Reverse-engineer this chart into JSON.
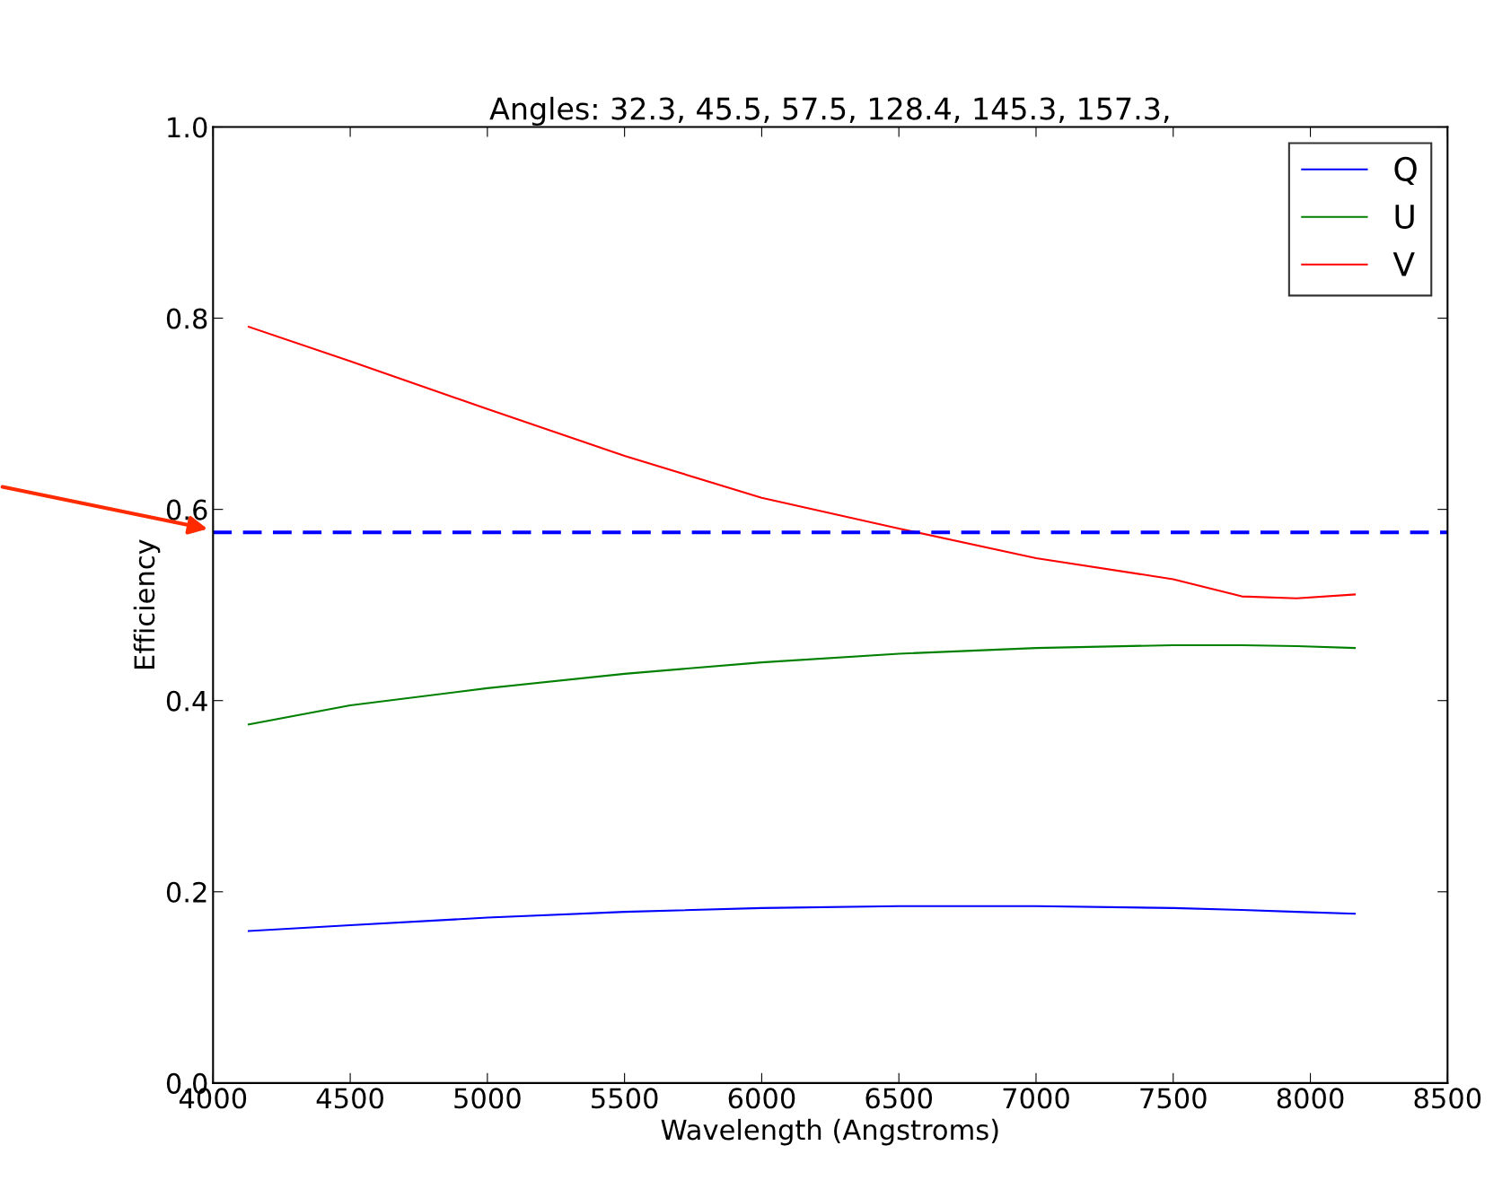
{
  "chart_data": {
    "type": "line",
    "title": "Angles: 32.3, 45.5, 57.5, 128.4, 145.3, 157.3,",
    "xlabel": "Wavelength (Angstroms)",
    "ylabel": "Efficiency",
    "x": [
      4130,
      4500,
      5000,
      5500,
      6000,
      6500,
      7000,
      7500,
      7750,
      7950,
      8162
    ],
    "series": [
      {
        "name": "Q",
        "color": "#0000ff",
        "values": [
          0.159,
          0.165,
          0.173,
          0.179,
          0.183,
          0.185,
          0.185,
          0.183,
          0.181,
          0.179,
          0.177
        ]
      },
      {
        "name": "U",
        "color": "#008000",
        "values": [
          0.375,
          0.395,
          0.413,
          0.428,
          0.44,
          0.449,
          0.455,
          0.458,
          0.458,
          0.457,
          0.455
        ]
      },
      {
        "name": "V",
        "color": "#ff0000",
        "values": [
          0.791,
          0.755,
          0.705,
          0.656,
          0.612,
          0.58,
          0.549,
          0.527,
          0.509,
          0.507,
          0.511
        ]
      }
    ],
    "xlim": [
      4000,
      8500
    ],
    "xticks": [
      4000,
      4500,
      5000,
      5500,
      6000,
      6500,
      7000,
      7500,
      8000,
      8500
    ],
    "ylim": [
      0,
      1
    ],
    "yticks": [
      {
        "value": 0,
        "label": "0.0"
      },
      {
        "value": 0.2,
        "label": "0.2"
      },
      {
        "value": 0.4,
        "label": "0.4"
      },
      {
        "value": 0.6,
        "label": "0.6"
      },
      {
        "value": 0.8,
        "label": "0.8"
      },
      {
        "value": 1,
        "label": "1.0"
      }
    ],
    "ref_lines": [
      {
        "axis": "y",
        "value": 0.576,
        "color": "#0000ff",
        "line_style": "dashed"
      }
    ],
    "legend": "top right",
    "grid": false
  }
}
